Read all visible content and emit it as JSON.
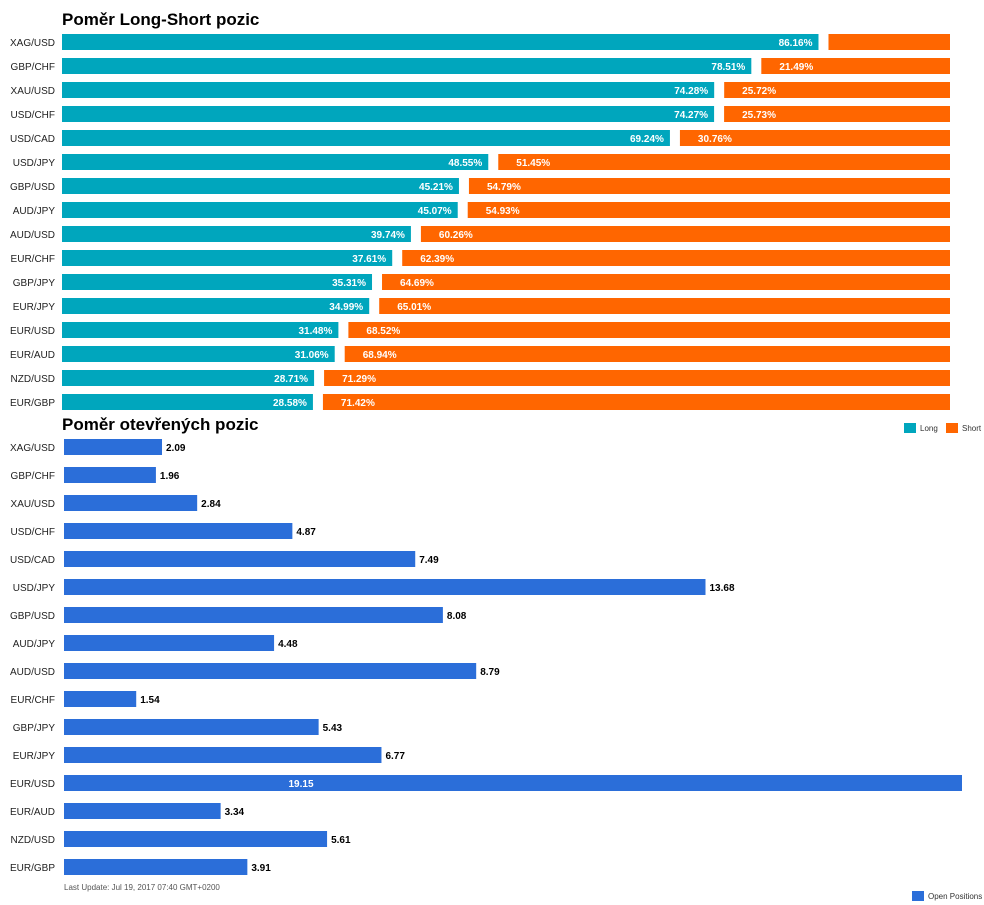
{
  "colors": {
    "long": "#00a6bd",
    "short": "#ff6600",
    "open": "#2b6ed9"
  },
  "footer": "Last Update: Jul 19, 2017 07:40 GMT+0200",
  "chart_data": [
    {
      "type": "bar",
      "orientation": "horizontal",
      "stacked": true,
      "title": "Poměr Long-Short pozic",
      "categories": [
        "XAG/USD",
        "GBP/CHF",
        "XAU/USD",
        "USD/CHF",
        "USD/CAD",
        "USD/JPY",
        "GBP/USD",
        "AUD/JPY",
        "AUD/USD",
        "EUR/CHF",
        "GBP/JPY",
        "EUR/JPY",
        "EUR/USD",
        "EUR/AUD",
        "NZD/USD",
        "EUR/GBP"
      ],
      "series": [
        {
          "name": "Long",
          "values": [
            86.16,
            78.51,
            74.28,
            74.27,
            69.24,
            48.55,
            45.21,
            45.07,
            39.74,
            37.61,
            35.31,
            34.99,
            31.48,
            31.06,
            28.71,
            28.58
          ],
          "labels": [
            "86.16%",
            "78.51%",
            "74.28%",
            "74.27%",
            "69.24%",
            "48.55%",
            "45.21%",
            "45.07%",
            "39.74%",
            "37.61%",
            "35.31%",
            "34.99%",
            "31.48%",
            "31.06%",
            "28.71%",
            "28.58%"
          ]
        },
        {
          "name": "Short",
          "values": [
            13.84,
            21.49,
            25.72,
            25.73,
            30.76,
            51.45,
            54.79,
            54.93,
            60.26,
            62.39,
            64.69,
            65.01,
            68.52,
            68.94,
            71.29,
            71.42
          ],
          "labels": [
            "",
            "21.49%",
            "25.72%",
            "25.73%",
            "30.76%",
            "51.45%",
            "54.79%",
            "54.93%",
            "60.26%",
            "62.39%",
            "64.69%",
            "65.01%",
            "68.52%",
            "68.94%",
            "71.29%",
            "71.42%"
          ]
        }
      ],
      "legend": "bottom-right",
      "grid": false
    },
    {
      "type": "bar",
      "orientation": "horizontal",
      "title": "Poměr otevřených pozic",
      "categories": [
        "XAG/USD",
        "GBP/CHF",
        "XAU/USD",
        "USD/CHF",
        "USD/CAD",
        "USD/JPY",
        "GBP/USD",
        "AUD/JPY",
        "AUD/USD",
        "EUR/CHF",
        "GBP/JPY",
        "EUR/JPY",
        "EUR/USD",
        "EUR/AUD",
        "NZD/USD",
        "EUR/GBP"
      ],
      "series": [
        {
          "name": "Open Positions",
          "values": [
            2.09,
            1.96,
            2.84,
            4.87,
            7.49,
            13.68,
            8.08,
            4.48,
            8.79,
            1.54,
            5.43,
            6.77,
            19.15,
            3.34,
            5.61,
            3.91
          ],
          "labels": [
            "2.09",
            "1.96",
            "2.84",
            "4.87",
            "7.49",
            "13.68",
            "8.08",
            "4.48",
            "8.79",
            "1.54",
            "5.43",
            "6.77",
            "19.15",
            "3.34",
            "5.61",
            "3.91"
          ]
        }
      ],
      "xlim": [
        0,
        19.15
      ],
      "legend": "bottom-right",
      "grid": false
    }
  ]
}
